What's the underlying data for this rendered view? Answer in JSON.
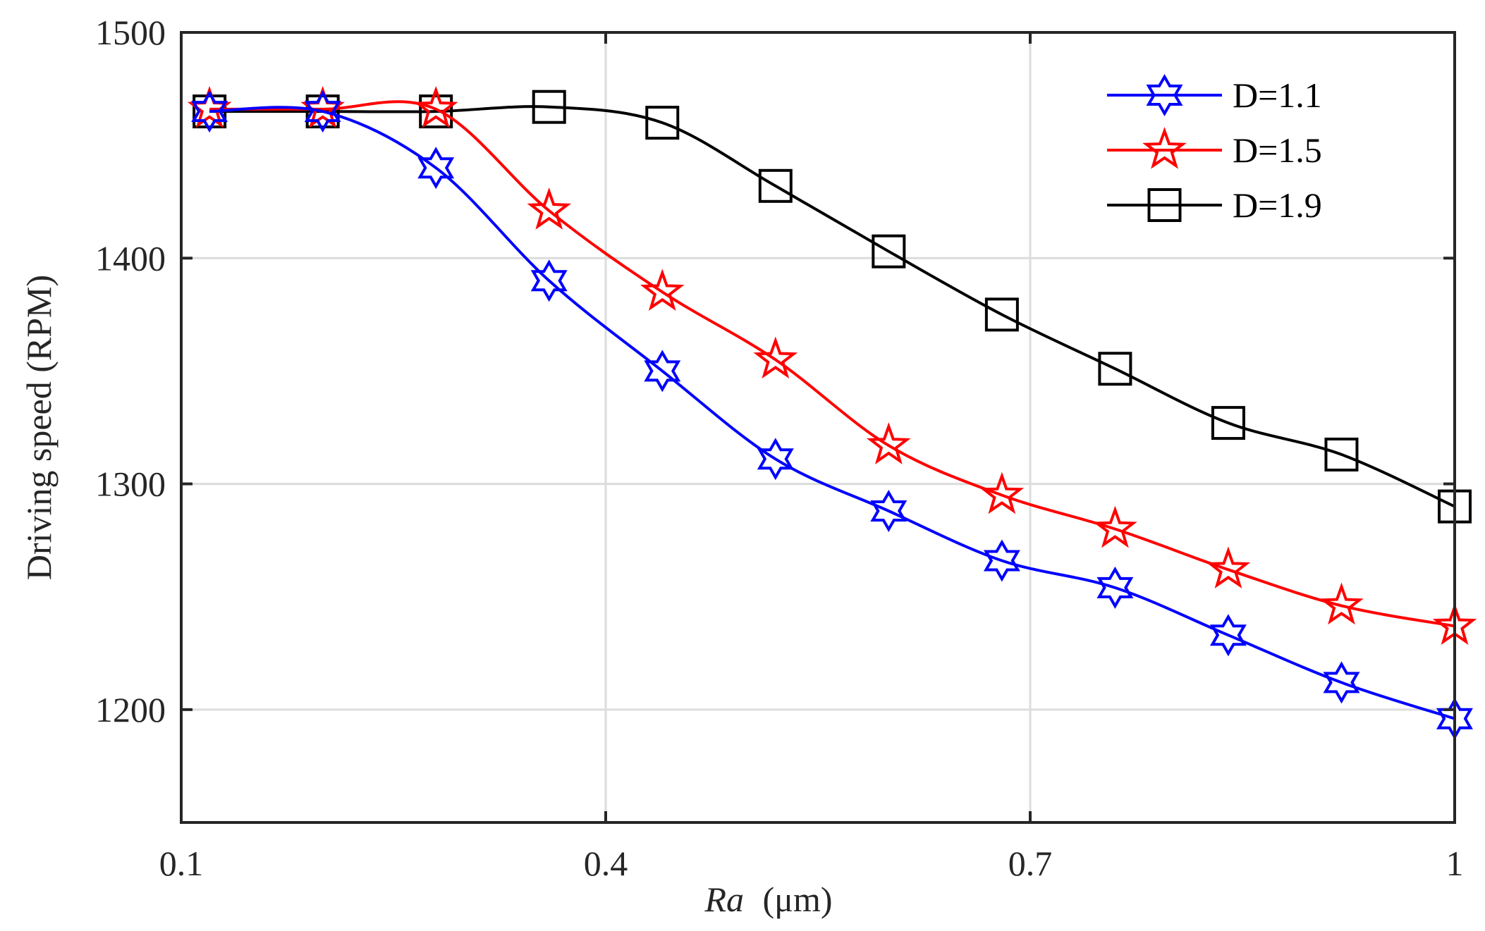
{
  "chart_data": {
    "type": "line",
    "title": "",
    "xlabel_main": "Ra",
    "xlabel_unit": "(μm)",
    "ylabel": "Driving speed (RPM)",
    "xlim": [
      0.1,
      1.0
    ],
    "ylim": [
      1150,
      1500
    ],
    "x_ticks": [
      0.1,
      0.4,
      0.7,
      1.0
    ],
    "x_tick_labels": [
      "0.1",
      "0.4",
      "0.7",
      "1"
    ],
    "y_ticks": [
      1200,
      1300,
      1400,
      1500
    ],
    "y_tick_labels": [
      "1200",
      "1300",
      "1400",
      "1500"
    ],
    "grid": true,
    "legend_position": "top-right",
    "x": [
      0.12,
      0.2,
      0.28,
      0.36,
      0.44,
      0.52,
      0.6,
      0.68,
      0.76,
      0.84,
      0.92,
      1.0
    ],
    "series": [
      {
        "name": "D=1.1",
        "color": "#0000ff",
        "marker": "hexagram",
        "values": [
          1465,
          1465,
          1440,
          1390,
          1350,
          1311,
          1288,
          1266,
          1254,
          1233,
          1212,
          1196
        ]
      },
      {
        "name": "D=1.5",
        "color": "#ff0000",
        "marker": "pentagram",
        "values": [
          1466,
          1466,
          1466,
          1421,
          1385,
          1355,
          1317,
          1295,
          1280,
          1262,
          1246,
          1237
        ]
      },
      {
        "name": "D=1.9",
        "color": "#000000",
        "marker": "square",
        "values": [
          1465,
          1465,
          1465,
          1467,
          1460,
          1432,
          1403,
          1375,
          1351,
          1327,
          1313,
          1290
        ]
      }
    ]
  }
}
